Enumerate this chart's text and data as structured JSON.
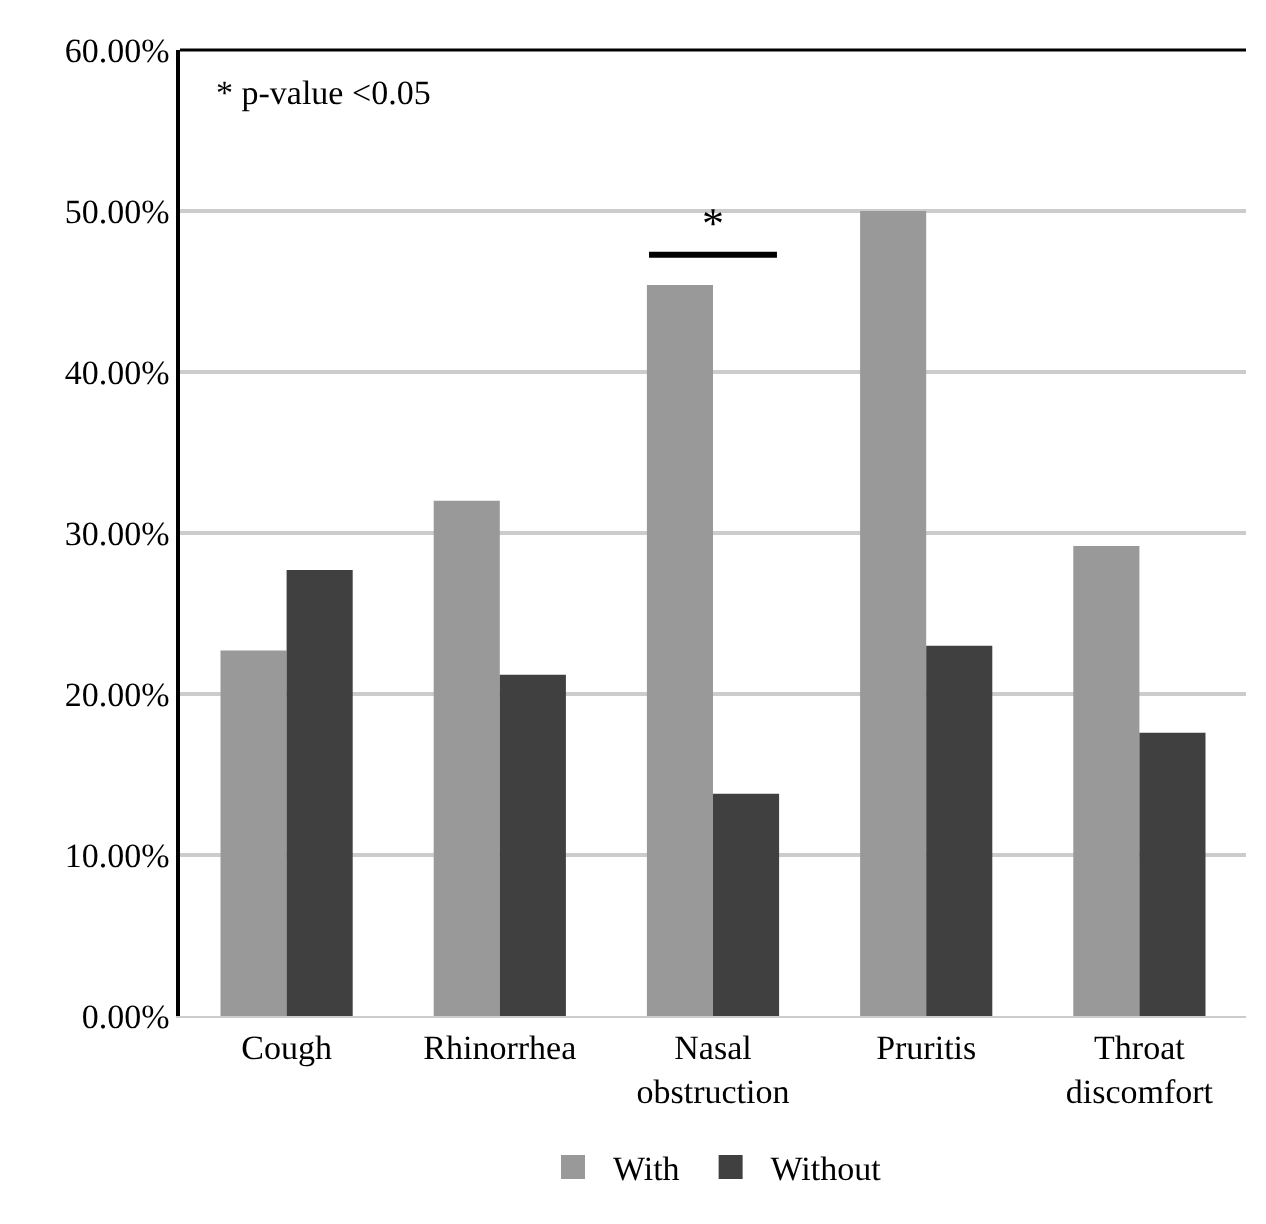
{
  "chart_data": {
    "type": "bar",
    "categories": [
      "Cough",
      "Rhinorrhea",
      "Nasal obstruction",
      "Pruritis",
      "Throat discomfort"
    ],
    "series": [
      {
        "name": "With",
        "color": "#999999",
        "values": [
          22.7,
          32.0,
          45.4,
          50.0,
          29.2
        ]
      },
      {
        "name": "Without",
        "color": "#404040",
        "values": [
          27.7,
          21.2,
          13.8,
          23.0,
          17.6
        ]
      }
    ],
    "ylim": [
      0,
      60
    ],
    "yticks": [
      {
        "value": 0,
        "label": "0.00%"
      },
      {
        "value": 10,
        "label": "10.00%"
      },
      {
        "value": 20,
        "label": "20.00%"
      },
      {
        "value": 30,
        "label": "30.00%"
      },
      {
        "value": 40,
        "label": "40.00%"
      },
      {
        "value": 50,
        "label": "50.00%"
      },
      {
        "value": 60,
        "label": "60.00%"
      }
    ],
    "grid": "y",
    "legend": "bottom",
    "annotations": [
      "* p-value <0.05",
      "*"
    ]
  }
}
